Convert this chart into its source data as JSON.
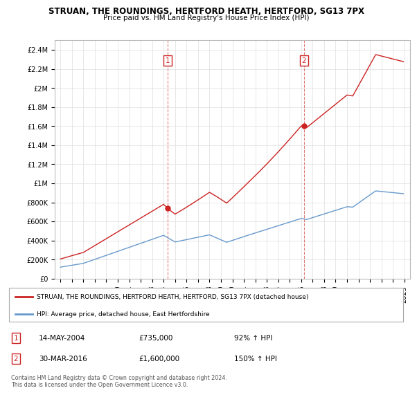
{
  "title": "STRUAN, THE ROUNDINGS, HERTFORD HEATH, HERTFORD, SG13 7PX",
  "subtitle": "Price paid vs. HM Land Registry's House Price Index (HPI)",
  "hpi_color": "#6699cc",
  "property_color": "#cc2222",
  "vline_color": "#cc2222",
  "background_color": "#ffffff",
  "grid_color": "#dddddd",
  "ylim": [
    0,
    2500000
  ],
  "yticks": [
    0,
    200000,
    400000,
    600000,
    800000,
    1000000,
    1200000,
    1400000,
    1600000,
    1800000,
    2000000,
    2200000,
    2400000
  ],
  "ytick_labels": [
    "£0",
    "£200K",
    "£400K",
    "£600K",
    "£800K",
    "£1M",
    "£1.2M",
    "£1.4M",
    "£1.6M",
    "£1.8M",
    "£2M",
    "£2.2M",
    "£2.4M"
  ],
  "xlim_start": 1994.5,
  "xlim_end": 2025.5,
  "legend_property": "STRUAN, THE ROUNDINGS, HERTFORD HEATH, HERTFORD, SG13 7PX (detached house)",
  "legend_hpi": "HPI: Average price, detached house, East Hertfordshire",
  "footer": "Contains HM Land Registry data © Crown copyright and database right 2024.\nThis data is licensed under the Open Government Licence v3.0.",
  "table_row1": [
    "1",
    "14-MAY-2004",
    "£735,000",
    "92% ↑ HPI"
  ],
  "table_row2": [
    "2",
    "30-MAR-2016",
    "£1,600,000",
    "150% ↑ HPI"
  ],
  "sale1_x": 2004.37,
  "sale1_y": 735000,
  "sale2_x": 2016.24,
  "sale2_y": 1600000
}
